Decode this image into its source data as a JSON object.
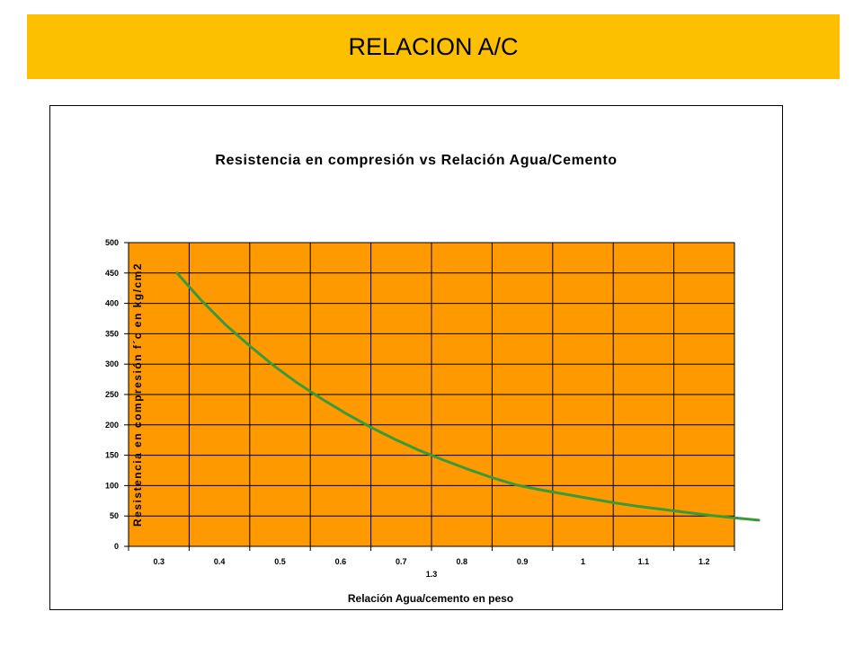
{
  "banner": {
    "title": "RELACION A/C",
    "color": "#fcc000"
  },
  "chart_data": {
    "type": "line",
    "title": "Resistencia en compresión vs  Relación  Agua/Cemento",
    "xlabel": "Relación  Agua/cemento  en peso",
    "ylabel": "Resistencia  en compresión f´c en kg/cm2",
    "x_ticks": [
      "0.3",
      "0.4",
      "0.5",
      "0.6",
      "0.7",
      "0.8",
      "0.9",
      "1",
      "1.1",
      "1.2",
      "1.3"
    ],
    "y_ticks": [
      "0",
      "50",
      "100",
      "150",
      "200",
      "250",
      "300",
      "350",
      "400",
      "450",
      "500"
    ],
    "ylim": [
      0,
      500
    ],
    "grid": true,
    "plot_background": "#ff9900",
    "line_color": "#3a9a3a",
    "series": [
      {
        "x": [
          0.38,
          0.42,
          0.46,
          0.5,
          0.54,
          0.58,
          0.62,
          0.66,
          0.7,
          0.74,
          0.78,
          0.82,
          0.86,
          0.9,
          0.94,
          0.98,
          1.02,
          1.06,
          1.1,
          1.14,
          1.18,
          1.22,
          1.26,
          1.3,
          1.34
        ],
        "y": [
          450,
          405,
          365,
          330,
          297,
          268,
          242,
          218,
          196,
          176,
          158,
          142,
          127,
          113,
          101,
          93,
          86,
          79,
          72,
          66,
          61,
          56,
          51,
          47,
          43
        ]
      }
    ]
  }
}
